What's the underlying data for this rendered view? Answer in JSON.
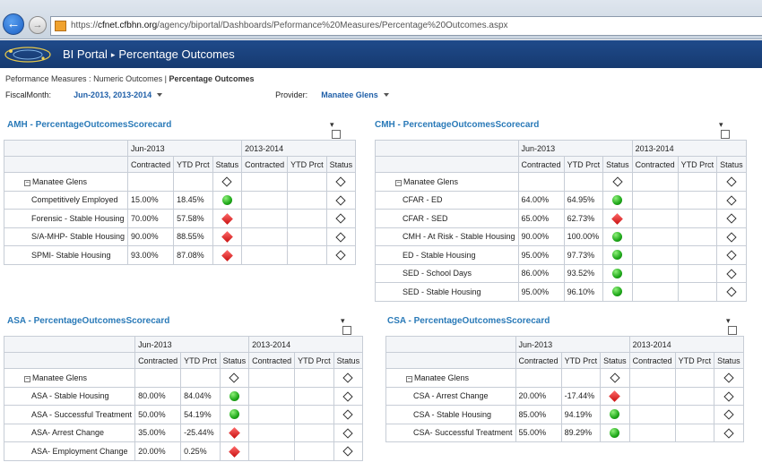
{
  "browser": {
    "url_scheme": "https://",
    "url_host": "cfnet.cfbhn.org",
    "url_path": "/agency/biportal/Dashboards/Peformance%20Measures/Percentage%20Outcomes.aspx"
  },
  "header": {
    "portal": "BI Portal",
    "separator": "▸",
    "page": "Percentage Outcomes"
  },
  "breadcrumb": {
    "parent": "Peformance Measures",
    "sep1": " : ",
    "child": "Numeric Outcomes",
    "sep2": " | ",
    "current": "Percentage Outcomes"
  },
  "filters": {
    "fiscal_label": "FiscalMonth:",
    "fiscal_value": "Jun-2013, 2013-2014",
    "provider_label": "Provider:",
    "provider_value": "Manatee Glens"
  },
  "columns": {
    "period1": "Jun-2013",
    "period2": "2013-2014",
    "contracted": "Contracted",
    "ytd": "YTD Prct",
    "status": "Status"
  },
  "colors": {
    "accent": "#2a7ab8",
    "header_bg": "#1f4a8a",
    "good": "#1fa81a",
    "bad": "#c81010"
  },
  "scorecards": [
    {
      "title": "AMH - PercentageOutcomesScorecard",
      "group": "Manatee Glens",
      "rows": [
        {
          "label": "Competitively Employed",
          "contracted": "15.00%",
          "ytd": "18.45%",
          "status": "green"
        },
        {
          "label": "Forensic - Stable Housing",
          "contracted": "70.00%",
          "ytd": "57.58%",
          "status": "red"
        },
        {
          "label": "S/A-MHP- Stable Housing",
          "contracted": "90.00%",
          "ytd": "88.55%",
          "status": "red"
        },
        {
          "label": "SPMI- Stable Housing",
          "contracted": "93.00%",
          "ytd": "87.08%",
          "status": "red"
        }
      ]
    },
    {
      "title": "CMH - PercentageOutcomesScorecard",
      "group": "Manatee Glens",
      "rows": [
        {
          "label": "CFAR - ED",
          "contracted": "64.00%",
          "ytd": "64.95%",
          "status": "green"
        },
        {
          "label": "CFAR - SED",
          "contracted": "65.00%",
          "ytd": "62.73%",
          "status": "red"
        },
        {
          "label": "CMH - At Risk - Stable Housing",
          "contracted": "90.00%",
          "ytd": "100.00%",
          "status": "green"
        },
        {
          "label": "ED - Stable Housing",
          "contracted": "95.00%",
          "ytd": "97.73%",
          "status": "green"
        },
        {
          "label": "SED - School Days",
          "contracted": "86.00%",
          "ytd": "93.52%",
          "status": "green"
        },
        {
          "label": "SED - Stable Housing",
          "contracted": "95.00%",
          "ytd": "96.10%",
          "status": "green"
        }
      ]
    },
    {
      "title": "ASA - PercentageOutcomesScorecard",
      "group": "Manatee Glens",
      "rows": [
        {
          "label": "ASA - Stable Housing",
          "contracted": "80.00%",
          "ytd": "84.04%",
          "status": "green"
        },
        {
          "label": "ASA - Successful Treatment",
          "contracted": "50.00%",
          "ytd": "54.19%",
          "status": "green"
        },
        {
          "label": "ASA- Arrest Change",
          "contracted": "35.00%",
          "ytd": "-25.44%",
          "status": "red"
        },
        {
          "label": "ASA- Employment Change",
          "contracted": "20.00%",
          "ytd": "0.25%",
          "status": "red"
        }
      ]
    },
    {
      "title": "CSA - PercentageOutcomesScorecard",
      "group": "Manatee Glens",
      "rows": [
        {
          "label": "CSA - Arrest Change",
          "contracted": "20.00%",
          "ytd": "-17.44%",
          "status": "red"
        },
        {
          "label": "CSA - Stable Housing",
          "contracted": "85.00%",
          "ytd": "94.19%",
          "status": "green"
        },
        {
          "label": "CSA- Successful Treatment",
          "contracted": "55.00%",
          "ytd": "89.29%",
          "status": "green"
        }
      ]
    }
  ]
}
